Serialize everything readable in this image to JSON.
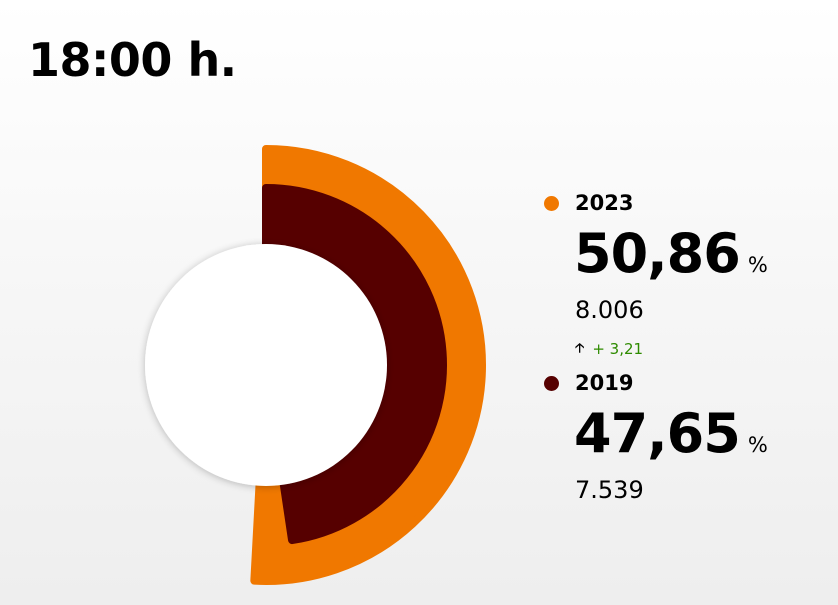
{
  "header": {
    "time": "18:00 h."
  },
  "chart_data": {
    "type": "radial-bar",
    "series": [
      {
        "name": "2023",
        "percent": 50.86,
        "percent_label": "50,86",
        "votes": "8.006",
        "color": "#f07800"
      },
      {
        "name": "2019",
        "percent": 47.65,
        "percent_label": "47,65",
        "votes": "7.539",
        "color": "#560000"
      }
    ],
    "unit": "%",
    "change": {
      "label": "+ 3,21",
      "direction": "up",
      "color": "#2e8b00"
    }
  }
}
